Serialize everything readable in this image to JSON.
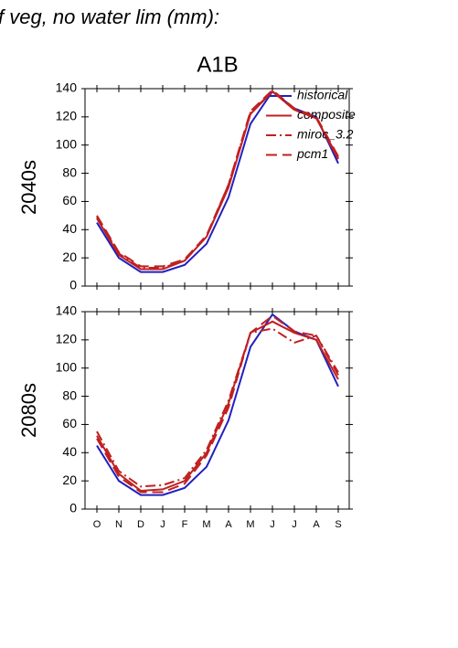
{
  "header": "f veg, no water lim (mm):",
  "chart_data": [
    {
      "type": "line",
      "title": "A1B",
      "ylabel": "2040s",
      "show_xlabels": false,
      "legend": true,
      "legend_position": "upper right",
      "categories": [
        "O",
        "N",
        "D",
        "J",
        "F",
        "M",
        "A",
        "M",
        "J",
        "J",
        "A",
        "S"
      ],
      "ylim": [
        0,
        140
      ],
      "yticks": [
        0,
        20,
        40,
        60,
        80,
        100,
        120,
        140
      ],
      "series": [
        {
          "name": "historical",
          "color": "#2020c0",
          "style": "solid",
          "values": [
            45,
            20,
            10,
            10,
            15,
            30,
            63,
            115,
            138,
            126,
            120,
            87
          ]
        },
        {
          "name": "composite",
          "color": "#c02020",
          "style": "solid",
          "values": [
            48,
            22,
            12,
            12,
            18,
            35,
            70,
            122,
            138,
            125,
            119,
            90
          ]
        },
        {
          "name": "miroc_3.2",
          "color": "#c02020",
          "style": "dashdot",
          "values": [
            49,
            23,
            13,
            13,
            18,
            35,
            72,
            123,
            138,
            125,
            119,
            91
          ]
        },
        {
          "name": "pcm1",
          "color": "#c02020",
          "style": "dashed",
          "values": [
            50,
            24,
            14,
            14,
            19,
            36,
            72,
            124,
            139,
            126,
            120,
            92
          ]
        }
      ]
    },
    {
      "type": "line",
      "ylabel": "2080s",
      "show_xlabels": true,
      "legend": false,
      "categories": [
        "O",
        "N",
        "D",
        "J",
        "F",
        "M",
        "A",
        "M",
        "J",
        "J",
        "A",
        "S"
      ],
      "ylim": [
        0,
        140
      ],
      "yticks": [
        0,
        20,
        40,
        60,
        80,
        100,
        120,
        140
      ],
      "series": [
        {
          "name": "historical",
          "color": "#2020c0",
          "style": "solid",
          "values": [
            45,
            20,
            10,
            10,
            15,
            30,
            63,
            115,
            138,
            126,
            120,
            87
          ]
        },
        {
          "name": "composite",
          "color": "#c02020",
          "style": "solid",
          "values": [
            52,
            25,
            13,
            14,
            20,
            40,
            75,
            125,
            133,
            125,
            120,
            92
          ]
        },
        {
          "name": "miroc_3.2",
          "color": "#c02020",
          "style": "dashdot",
          "values": [
            55,
            27,
            16,
            17,
            22,
            42,
            77,
            125,
            128,
            118,
            123,
            97
          ]
        },
        {
          "name": "pcm1",
          "color": "#c02020",
          "style": "dashed",
          "values": [
            50,
            23,
            12,
            12,
            18,
            38,
            72,
            125,
            137,
            126,
            123,
            95
          ]
        }
      ]
    }
  ]
}
